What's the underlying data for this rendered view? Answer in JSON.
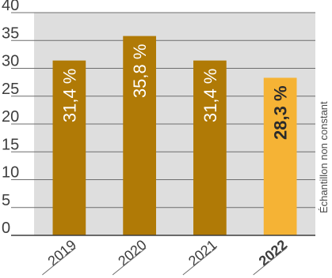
{
  "chart_data": {
    "type": "bar",
    "categories": [
      "2019",
      "2020",
      "2021",
      "2022"
    ],
    "values": [
      31.4,
      35.8,
      31.4,
      28.3
    ],
    "data_labels": [
      "31,4 %",
      "35,8 %",
      "31,4 %",
      "28,3 %"
    ],
    "highlighted_category": "2022",
    "y_ticks": [
      "0",
      "5",
      "10",
      "15",
      "20",
      "25",
      "30",
      "35",
      "40"
    ],
    "ylim": [
      0,
      40
    ],
    "grid": true,
    "note": "Échantillon non constant",
    "colors": {
      "bar": "#b07a06",
      "bar_highlight": "#f5b335",
      "plot_background": "#dedede",
      "gridline": "#6d6d6d",
      "axis": "#3d3d3d"
    }
  }
}
